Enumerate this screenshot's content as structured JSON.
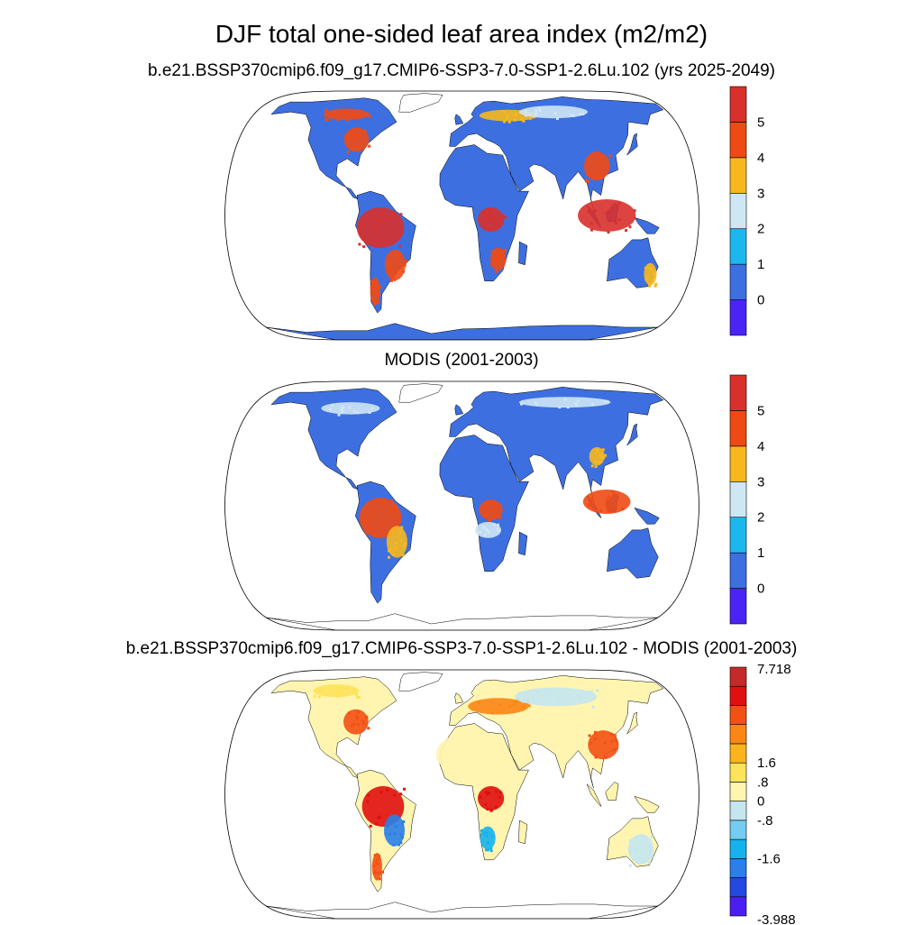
{
  "title": "DJF total one-sided leaf area index (m2/m2)",
  "panels": [
    {
      "title": "b.e21.BSSP370cmip6.f09_g17.CMIP6-SSP3-7.0-SSP1-2.6Lu.102 (yrs 2025-2049)",
      "colorbar": {
        "colors": [
          "#4a24f5",
          "#3d6fe0",
          "#1bb8f0",
          "#cfe6f5",
          "#f7b81e",
          "#f04a14",
          "#d8302c"
        ],
        "labels": [
          "0",
          "1",
          "2",
          "3",
          "4",
          "5"
        ]
      }
    },
    {
      "title": "MODIS (2001-2003)",
      "colorbar": {
        "colors": [
          "#4a24f5",
          "#3d6fe0",
          "#1bb8f0",
          "#cfe6f5",
          "#f7b81e",
          "#f04a14",
          "#d8302c"
        ],
        "labels": [
          "0",
          "1",
          "2",
          "3",
          "4",
          "5"
        ]
      }
    },
    {
      "title": "b.e21.BSSP370cmip6.f09_g17.CMIP6-SSP3-7.0-SSP1-2.6Lu.102 - MODIS (2001-2003)",
      "colorbar": {
        "colors": [
          "#4a1ef0",
          "#2448e0",
          "#2a7fe8",
          "#16b2ee",
          "#74cdf0",
          "#c4e6f0",
          "#fff5b0",
          "#fde35a",
          "#fcb41c",
          "#fb8616",
          "#f45014",
          "#e01010",
          "#c42a2a"
        ],
        "labels": [
          "-3.988",
          "-1.6",
          "-.8",
          "0",
          ".8",
          "1.6",
          "7.718"
        ]
      }
    }
  ]
}
